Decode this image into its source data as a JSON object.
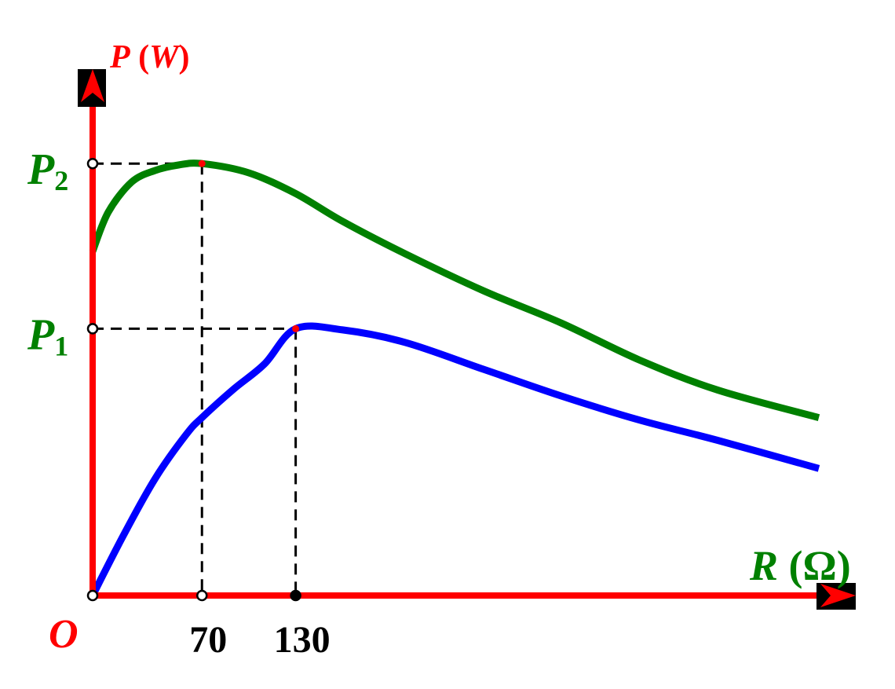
{
  "chart_data": {
    "type": "line",
    "origin_label": "O",
    "y_axis": {
      "symbol": "P",
      "unit": "W",
      "color": "#ff0000"
    },
    "x_axis": {
      "symbol": "R",
      "unit": "Ω",
      "color": "#008000"
    },
    "xlim": [
      0,
      465
    ],
    "ylim": [
      0,
      1.0
    ],
    "x_ticks": [
      {
        "value": 70,
        "label": "70",
        "marker": "open"
      },
      {
        "value": 130,
        "label": "130",
        "marker": "filled"
      }
    ],
    "y_ticks": [
      {
        "value": 0.5775,
        "label": "P",
        "subscript": "1",
        "color": "#008000"
      },
      {
        "value": 0.935,
        "label": "P",
        "subscript": "2",
        "color": "#008000"
      }
    ],
    "series": [
      {
        "color": "#0000ff",
        "x": [
          0,
          20,
          40,
          60,
          70,
          90,
          110,
          130,
          160,
          200,
          250,
          300,
          350,
          400,
          465
        ],
        "y": [
          0,
          0.132,
          0.253,
          0.349,
          0.385,
          0.446,
          0.501,
          0.5775,
          0.575,
          0.548,
          0.49,
          0.432,
          0.38,
          0.336,
          0.275
        ]
      },
      {
        "color": "#008000",
        "x": [
          0,
          10,
          25,
          40,
          55,
          70,
          100,
          130,
          160,
          200,
          250,
          300,
          350,
          400,
          465
        ],
        "y": [
          0.745,
          0.83,
          0.895,
          0.92,
          0.932,
          0.935,
          0.915,
          0.87,
          0.81,
          0.74,
          0.66,
          0.59,
          0.51,
          0.445,
          0.385
        ]
      }
    ],
    "peaks": [
      {
        "x": 130,
        "y": 0.5775,
        "series": 0
      },
      {
        "x": 70,
        "y": 0.935,
        "series": 1
      }
    ]
  }
}
